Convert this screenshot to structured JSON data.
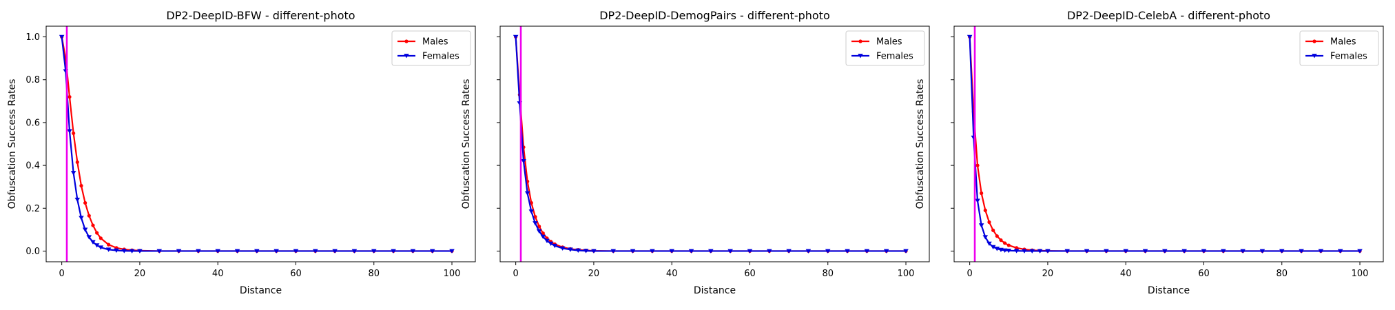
{
  "chart_data": [
    {
      "type": "line",
      "title": "DP2-DeepID-BFW - different-photo",
      "xlabel": "Distance",
      "ylabel": "Obfuscation Success Rates",
      "xlim": [
        -4,
        106
      ],
      "ylim": [
        -0.05,
        1.05
      ],
      "xticks": [
        "0",
        "20",
        "40",
        "60",
        "80",
        "100"
      ],
      "yticks": [
        "0.0",
        "0.2",
        "0.4",
        "0.6",
        "0.8",
        "1.0"
      ],
      "show_ytick_labels": true,
      "vline_x": 1.3,
      "legend_position": "top-right",
      "x": [
        0,
        1,
        2,
        3,
        4,
        5,
        6,
        7,
        8,
        9,
        10,
        12,
        14,
        16,
        18,
        20,
        25,
        30,
        35,
        40,
        45,
        50,
        55,
        60,
        65,
        70,
        75,
        80,
        85,
        90,
        95,
        100
      ],
      "series": [
        {
          "name": "Males",
          "color": "#ff0000",
          "marker": "circle",
          "values": [
            1.0,
            0.9,
            0.72,
            0.55,
            0.415,
            0.305,
            0.225,
            0.165,
            0.12,
            0.085,
            0.06,
            0.03,
            0.015,
            0.008,
            0.004,
            0.002,
            0,
            0,
            0,
            0,
            0,
            0,
            0,
            0,
            0,
            0,
            0,
            0,
            0,
            0,
            0,
            0
          ]
        },
        {
          "name": "Females",
          "color": "#0000dd",
          "marker": "triangle-down",
          "values": [
            1.0,
            0.84,
            0.56,
            0.365,
            0.24,
            0.155,
            0.1,
            0.065,
            0.042,
            0.027,
            0.017,
            0.007,
            0.003,
            0.001,
            0,
            0,
            0,
            0,
            0,
            0,
            0,
            0,
            0,
            0,
            0,
            0,
            0,
            0,
            0,
            0,
            0,
            0
          ]
        }
      ]
    },
    {
      "type": "line",
      "title": "DP2-DeepID-DemogPairs - different-photo",
      "xlabel": "Distance",
      "ylabel": "Obfuscation Success Rates",
      "xlim": [
        -4,
        106
      ],
      "ylim": [
        -0.05,
        1.05
      ],
      "xticks": [
        "0",
        "20",
        "40",
        "60",
        "80",
        "100"
      ],
      "yticks": [
        "0.0",
        "0.2",
        "0.4",
        "0.6",
        "0.8",
        "1.0"
      ],
      "show_ytick_labels": false,
      "vline_x": 1.3,
      "legend_position": "top-right",
      "x": [
        0,
        1,
        2,
        3,
        4,
        5,
        6,
        7,
        8,
        9,
        10,
        12,
        14,
        16,
        18,
        20,
        25,
        30,
        35,
        40,
        45,
        50,
        55,
        60,
        65,
        70,
        75,
        80,
        85,
        90,
        95,
        100
      ],
      "series": [
        {
          "name": "Males",
          "color": "#ff0000",
          "marker": "circle",
          "values": [
            1.0,
            0.73,
            0.485,
            0.325,
            0.225,
            0.16,
            0.115,
            0.083,
            0.06,
            0.044,
            0.032,
            0.018,
            0.01,
            0.006,
            0.003,
            0.001,
            0,
            0,
            0,
            0,
            0,
            0,
            0,
            0,
            0,
            0,
            0,
            0,
            0,
            0,
            0,
            0
          ]
        },
        {
          "name": "Females",
          "color": "#0000dd",
          "marker": "triangle-down",
          "values": [
            1.0,
            0.69,
            0.42,
            0.27,
            0.185,
            0.13,
            0.093,
            0.067,
            0.048,
            0.035,
            0.025,
            0.013,
            0.007,
            0.003,
            0.001,
            0,
            0,
            0,
            0,
            0,
            0,
            0,
            0,
            0,
            0,
            0,
            0,
            0,
            0,
            0,
            0,
            0
          ]
        }
      ]
    },
    {
      "type": "line",
      "title": "DP2-DeepID-CelebA - different-photo",
      "xlabel": "Distance",
      "ylabel": "Obfuscation Success Rates",
      "xlim": [
        -4,
        106
      ],
      "ylim": [
        -0.05,
        1.05
      ],
      "xticks": [
        "0",
        "20",
        "40",
        "60",
        "80",
        "100"
      ],
      "yticks": [
        "0.0",
        "0.2",
        "0.4",
        "0.6",
        "0.8",
        "1.0"
      ],
      "show_ytick_labels": false,
      "vline_x": 1.3,
      "legend_position": "top-right",
      "x": [
        0,
        1,
        2,
        3,
        4,
        5,
        6,
        7,
        8,
        9,
        10,
        12,
        14,
        16,
        18,
        20,
        25,
        30,
        35,
        40,
        45,
        50,
        55,
        60,
        65,
        70,
        75,
        80,
        85,
        90,
        95,
        100
      ],
      "series": [
        {
          "name": "Males",
          "color": "#ff0000",
          "marker": "circle",
          "values": [
            1.0,
            0.65,
            0.4,
            0.27,
            0.19,
            0.135,
            0.097,
            0.07,
            0.051,
            0.037,
            0.027,
            0.015,
            0.008,
            0.004,
            0.002,
            0.001,
            0,
            0,
            0,
            0,
            0,
            0,
            0,
            0,
            0,
            0,
            0,
            0,
            0,
            0,
            0,
            0
          ]
        },
        {
          "name": "Females",
          "color": "#0000dd",
          "marker": "triangle-down",
          "values": [
            1.0,
            0.53,
            0.235,
            0.12,
            0.065,
            0.035,
            0.019,
            0.011,
            0.006,
            0.003,
            0.002,
            0.001,
            0,
            0,
            0,
            0,
            0,
            0,
            0,
            0,
            0,
            0,
            0,
            0,
            0,
            0,
            0,
            0,
            0,
            0,
            0,
            0
          ]
        }
      ]
    }
  ],
  "colors": {
    "vline": "#ee00ee",
    "axes": "#000000",
    "background": "#ffffff"
  }
}
